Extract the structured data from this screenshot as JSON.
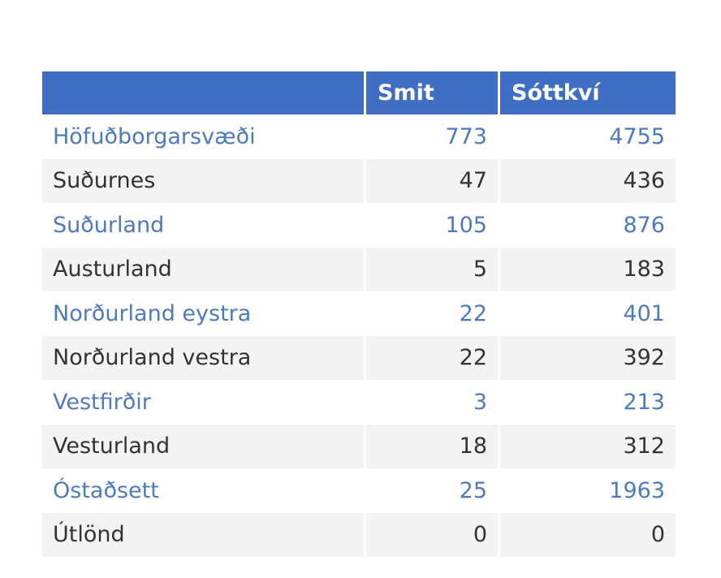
{
  "table": {
    "headers": [
      "",
      "Smit",
      "Sóttkví"
    ],
    "rows": [
      [
        "Höfuðborgarsvæði",
        "773",
        "4755"
      ],
      [
        "Suðurnes",
        "47",
        "436"
      ],
      [
        "Suðurland",
        "105",
        "876"
      ],
      [
        "Austurland",
        "5",
        "183"
      ],
      [
        "Norðurland eystra",
        "22",
        "401"
      ],
      [
        "Norðurland vestra",
        "22",
        "392"
      ],
      [
        "Vestfirðir",
        "3",
        "213"
      ],
      [
        "Vesturland",
        "18",
        "312"
      ],
      [
        "Óstaðsett",
        "25",
        "1963"
      ],
      [
        "Útlönd",
        "0",
        "0"
      ]
    ]
  },
  "colors": {
    "header_bg": "#3f6fc4",
    "header_text": "#ffffff",
    "odd_row_text": "#4d7ac0",
    "even_row_text": "#333333",
    "even_row_bg": "#f3f3f3"
  }
}
